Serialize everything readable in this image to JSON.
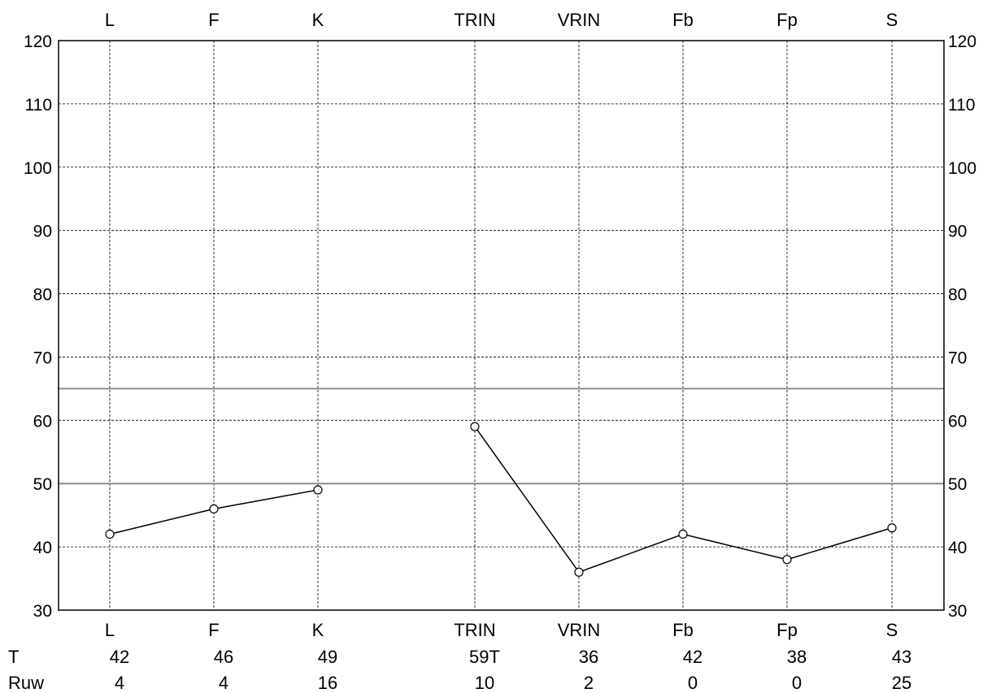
{
  "chart_data": {
    "type": "line",
    "title": "",
    "xlabel": "",
    "ylabel": "",
    "ylim": [
      30,
      120
    ],
    "yticks": [
      30,
      40,
      50,
      60,
      70,
      80,
      90,
      100,
      110,
      120
    ],
    "grid": true,
    "categories": [
      "L",
      "F",
      "K",
      "TRIN",
      "VRIN",
      "Fb",
      "Fp",
      "S"
    ],
    "reference_lines": [
      50,
      65
    ],
    "segments": [
      {
        "categories": [
          "L",
          "F",
          "K"
        ],
        "values": [
          42,
          46,
          49
        ]
      },
      {
        "categories": [
          "TRIN",
          "VRIN",
          "Fb",
          "Fp",
          "S"
        ],
        "values": [
          59,
          36,
          42,
          38,
          43
        ]
      }
    ],
    "table": {
      "rows": [
        {
          "label": "T",
          "values": [
            "42",
            "46",
            "49",
            "59T",
            "36",
            "42",
            "38",
            "43"
          ]
        },
        {
          "label": "Ruw",
          "values": [
            "4",
            "4",
            "16",
            "10",
            "2",
            "0",
            "0",
            "25"
          ]
        }
      ]
    }
  }
}
